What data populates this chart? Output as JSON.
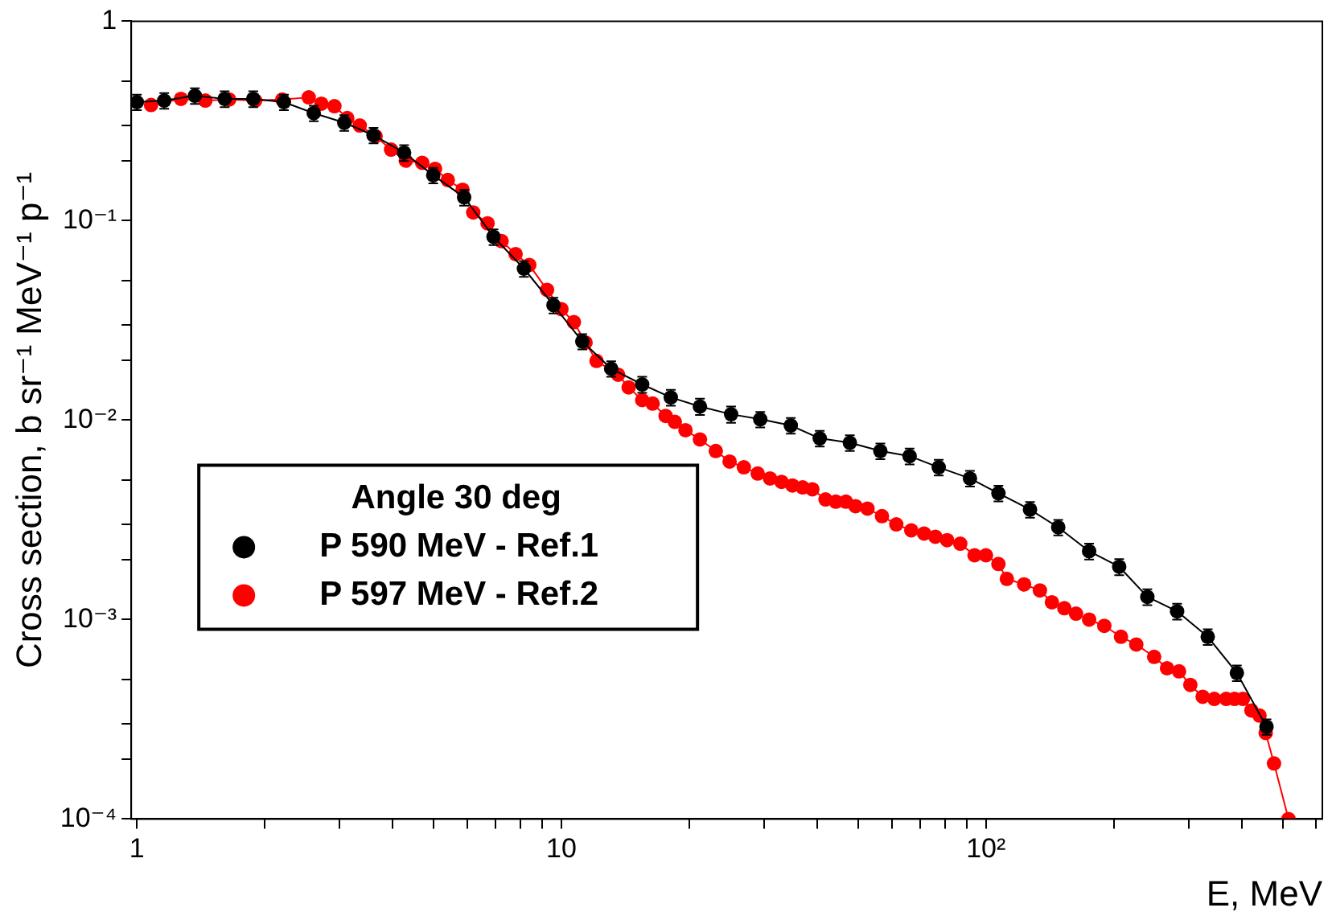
{
  "chart_data": {
    "type": "line",
    "xlabel": "E, MeV",
    "ylabel": "Cross section, b sr⁻¹ MeV⁻¹ p⁻¹",
    "legend_title": "Angle 30 deg",
    "legend": "bottom left",
    "log": "xy",
    "grid": false,
    "marker": "circle",
    "line_style": "solid",
    "xlim": [
      0.97,
      620
    ],
    "ylim": [
      0.0001,
      1
    ],
    "xticks": [
      1,
      {
        "value": 2,
        "label": null
      },
      {
        "value": 3,
        "label": null
      },
      {
        "value": 4,
        "label": null
      },
      {
        "value": 5,
        "label": null
      },
      {
        "value": 6,
        "label": null
      },
      {
        "value": 7,
        "label": null
      },
      {
        "value": 8,
        "label": null
      },
      {
        "value": 9,
        "label": null
      },
      10,
      {
        "value": 20,
        "label": null
      },
      {
        "value": 30,
        "label": null
      },
      {
        "value": 40,
        "label": null
      },
      {
        "value": 50,
        "label": null
      },
      {
        "value": 60,
        "label": null
      },
      {
        "value": 70,
        "label": null
      },
      {
        "value": 80,
        "label": null
      },
      {
        "value": 90,
        "label": null
      },
      {
        "value": 100,
        "label": "10²"
      },
      {
        "value": 200,
        "label": null
      },
      {
        "value": 300,
        "label": null
      },
      {
        "value": 400,
        "label": null
      },
      {
        "value": 500,
        "label": null
      },
      {
        "value": 600,
        "label": null
      }
    ],
    "yticks": [
      {
        "value": 0.0001,
        "label": "10⁻⁴"
      },
      {
        "value": 0.0002,
        "label": null
      },
      {
        "value": 0.0003,
        "label": null
      },
      {
        "value": 0.0005,
        "label": null
      },
      {
        "value": 0.001,
        "label": "10⁻³"
      },
      {
        "value": 0.002,
        "label": null
      },
      {
        "value": 0.003,
        "label": null
      },
      {
        "value": 0.005,
        "label": null
      },
      {
        "value": 0.01,
        "label": "10⁻²"
      },
      {
        "value": 0.02,
        "label": null
      },
      {
        "value": 0.03,
        "label": null
      },
      {
        "value": 0.05,
        "label": null
      },
      {
        "value": 0.1,
        "label": "10⁻¹"
      },
      {
        "value": 0.2,
        "label": null
      },
      {
        "value": 0.3,
        "label": null
      },
      {
        "value": 0.5,
        "label": null
      },
      1
    ],
    "series": [
      {
        "name": "P 590 MeV - Ref.1",
        "color": "#000000",
        "x": [
          1.0,
          1.16,
          1.37,
          1.61,
          1.88,
          2.22,
          2.61,
          3.08,
          3.61,
          4.26,
          4.99,
          5.9,
          6.92,
          8.16,
          9.58,
          11.2,
          13.1,
          15.5,
          18.1,
          21.2,
          25.1,
          29.4,
          34.7,
          40.6,
          47.8,
          56.4,
          66.1,
          77.4,
          91.7,
          107,
          127,
          148,
          175,
          206,
          240,
          282,
          333,
          390,
          458
        ],
        "values": [
          0.393,
          0.4,
          0.423,
          0.408,
          0.408,
          0.393,
          0.346,
          0.31,
          0.268,
          0.219,
          0.169,
          0.131,
          0.083,
          0.0575,
          0.0377,
          0.0248,
          0.0181,
          0.0151,
          0.013,
          0.0117,
          0.0107,
          0.0101,
          0.0094,
          0.0081,
          0.0077,
          0.007,
          0.0066,
          0.0058,
          0.0051,
          0.0043,
          0.00356,
          0.0029,
          0.0022,
          0.00184,
          0.0013,
          0.0011,
          0.00082,
          0.00054,
          0.00029
        ],
        "errors": [
          0.035,
          0.036,
          0.038,
          0.037,
          0.037,
          0.035,
          0.031,
          0.028,
          0.024,
          0.02,
          0.015,
          0.012,
          0.0075,
          0.0052,
          0.0034,
          0.0022,
          0.0016,
          0.0014,
          0.0012,
          0.0011,
          0.001,
          0.0009,
          0.00085,
          0.00073,
          0.0007,
          0.00063,
          0.0006,
          0.00052,
          0.00046,
          0.00039,
          0.00032,
          0.00026,
          0.0002,
          0.00017,
          0.00012,
          0.0001,
          7.4e-05,
          4.9e-05,
          2.6e-05
        ]
      },
      {
        "name": "P 597 MeV - Ref.2",
        "color": "#ff0000",
        "x": [
          1.08,
          1.27,
          1.45,
          1.65,
          1.9,
          2.2,
          2.54,
          2.72,
          2.92,
          3.13,
          3.35,
          3.65,
          3.97,
          4.3,
          4.7,
          5.04,
          5.4,
          5.85,
          6.2,
          6.7,
          7.23,
          7.8,
          8.4,
          9.25,
          10.0,
          10.7,
          11.4,
          12.1,
          13.6,
          14.4,
          15.5,
          16.4,
          17.6,
          18.5,
          19.6,
          21.2,
          23.1,
          24.9,
          26.9,
          29.0,
          31.0,
          33.0,
          35.0,
          37.0,
          39.0,
          41.9,
          44.3,
          46.8,
          49.3,
          52.6,
          56.9,
          61.5,
          66.7,
          71.5,
          76,
          81,
          87,
          94,
          100,
          107,
          112,
          123,
          134,
          143,
          153,
          163,
          175,
          190,
          208,
          226,
          249,
          267,
          285,
          303,
          324,
          345,
          368,
          385,
          403,
          422,
          441,
          456,
          477,
          516
        ],
        "values": [
          0.38,
          0.408,
          0.4,
          0.405,
          0.4,
          0.405,
          0.415,
          0.386,
          0.375,
          0.327,
          0.3,
          0.265,
          0.227,
          0.2,
          0.195,
          0.182,
          0.16,
          0.143,
          0.11,
          0.097,
          0.079,
          0.068,
          0.06,
          0.045,
          0.036,
          0.031,
          0.0245,
          0.0198,
          0.0169,
          0.0146,
          0.0126,
          0.0121,
          0.0105,
          0.0098,
          0.0089,
          0.008,
          0.007,
          0.0062,
          0.0058,
          0.0054,
          0.0051,
          0.0049,
          0.0047,
          0.0046,
          0.0045,
          0.004,
          0.0039,
          0.0039,
          0.0037,
          0.0036,
          0.0033,
          0.003,
          0.0028,
          0.0027,
          0.0026,
          0.0025,
          0.0024,
          0.0021,
          0.0021,
          0.0019,
          0.0016,
          0.0015,
          0.0014,
          0.00122,
          0.00114,
          0.00107,
          0.001,
          0.00093,
          0.00082,
          0.00075,
          0.00065,
          0.00057,
          0.00055,
          0.00047,
          0.00041,
          0.0004,
          0.0004,
          0.0004,
          0.0004,
          0.00035,
          0.00033,
          0.00027,
          0.00019,
          0.0001
        ]
      }
    ]
  }
}
